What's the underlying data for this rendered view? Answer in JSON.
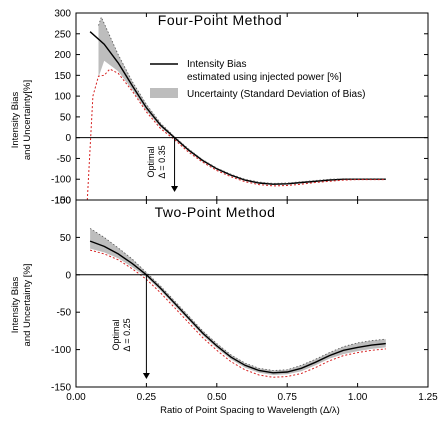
{
  "chart_data": [
    {
      "type": "line",
      "title": "Four-Point Method",
      "ylabel_line1": "Intensity Bias",
      "ylabel_line2": "and Uncertainty[%]",
      "xlim": [
        0,
        1.25
      ],
      "ylim": [
        -150,
        300
      ],
      "yticks": [
        300,
        250,
        200,
        150,
        100,
        50,
        0,
        -50,
        -100,
        -150
      ],
      "grid": false,
      "legend": {
        "placement": "top-right",
        "line_label_1": "Intensity Bias",
        "line_label_2": "estimated using injected power [%]",
        "band_label": "Uncertainty (Standard Deviation of Bias)"
      },
      "annotation": {
        "line1": "Optimal",
        "line2": "Δ = 0.35",
        "x": 0.35
      },
      "series": [
        {
          "kind": "bias",
          "x": [
            0.05,
            0.1,
            0.15,
            0.2,
            0.25,
            0.3,
            0.35,
            0.4,
            0.45,
            0.5,
            0.55,
            0.6,
            0.65,
            0.7,
            0.75,
            0.8,
            0.85,
            0.9,
            0.95,
            1.0,
            1.05,
            1.1
          ],
          "y": [
            255,
            225,
            180,
            125,
            72,
            30,
            0,
            -30,
            -55,
            -75,
            -90,
            -102,
            -109,
            -112,
            -111,
            -108,
            -105,
            -102,
            -100,
            -100,
            -100,
            -100
          ]
        },
        {
          "kind": "band",
          "x": [
            0.08,
            0.09,
            0.1,
            0.15,
            0.2,
            0.25,
            0.3,
            0.35,
            0.4,
            0.45,
            0.5,
            0.55,
            0.6,
            0.65,
            0.7,
            0.75,
            0.8,
            0.85,
            0.9,
            0.95,
            1.0,
            1.05,
            1.1
          ],
          "upper": [
            270,
            290,
            275,
            200,
            135,
            80,
            35,
            2,
            -27,
            -53,
            -73,
            -88,
            -100,
            -107,
            -110,
            -109,
            -106,
            -103,
            -100,
            -99,
            -99,
            -99,
            -99
          ],
          "lower": [
            145,
            165,
            185,
            160,
            115,
            65,
            25,
            -3,
            -33,
            -57,
            -77,
            -92,
            -104,
            -111,
            -114,
            -113,
            -110,
            -107,
            -104,
            -101,
            -101,
            -101,
            -101
          ]
        },
        {
          "kind": "lower-red",
          "x": [
            0.04,
            0.06,
            0.08,
            0.1,
            0.12,
            0.15,
            0.2,
            0.25,
            0.3,
            0.35,
            0.4,
            0.45,
            0.5,
            0.55,
            0.6,
            0.65,
            0.7,
            0.75,
            0.8,
            0.85,
            0.9,
            0.95,
            1.0,
            1.05,
            1.1
          ],
          "y": [
            -150,
            100,
            148,
            150,
            165,
            155,
            112,
            62,
            22,
            -5,
            -35,
            -59,
            -79,
            -94,
            -106,
            -113,
            -116,
            -115,
            -112,
            -108,
            -105,
            -102,
            -101,
            -101,
            -101
          ]
        }
      ]
    },
    {
      "type": "line",
      "title": "Two-Point Method",
      "ylabel_line1": "Intensity Bias",
      "ylabel_line2": "and Uncertainty [%]",
      "xlabel": "Ratio of Point Spacing to Wavelength (Δ/λ)",
      "xlim": [
        0,
        1.25
      ],
      "ylim": [
        -150,
        100
      ],
      "xticks": [
        "0.00",
        "0.25",
        "0.50",
        "0.75",
        "1.00",
        "1.25"
      ],
      "yticks": [
        100,
        50,
        0,
        -50,
        -100,
        -150
      ],
      "grid": false,
      "annotation": {
        "line1": "Optimal",
        "line2": "Δ = 0.25",
        "x": 0.25
      },
      "series": [
        {
          "kind": "bias",
          "x": [
            0.05,
            0.1,
            0.15,
            0.2,
            0.25,
            0.3,
            0.35,
            0.4,
            0.45,
            0.5,
            0.55,
            0.6,
            0.65,
            0.7,
            0.75,
            0.8,
            0.85,
            0.9,
            0.95,
            1.0,
            1.05,
            1.1
          ],
          "y": [
            45,
            38,
            28,
            15,
            0,
            -18,
            -38,
            -58,
            -78,
            -95,
            -110,
            -121,
            -128,
            -131,
            -130,
            -125,
            -117,
            -108,
            -101,
            -97,
            -94,
            -92
          ]
        },
        {
          "kind": "band",
          "x": [
            0.05,
            0.1,
            0.15,
            0.2,
            0.25,
            0.3,
            0.35,
            0.4,
            0.45,
            0.5,
            0.55,
            0.6,
            0.65,
            0.7,
            0.75,
            0.8,
            0.85,
            0.9,
            0.95,
            1.0,
            1.05,
            1.1
          ],
          "upper": [
            62,
            50,
            36,
            21,
            3,
            -15,
            -35,
            -55,
            -75,
            -92,
            -107,
            -118,
            -125,
            -128,
            -127,
            -121,
            -113,
            -104,
            -96,
            -91,
            -88,
            -86
          ],
          "lower": [
            35,
            30,
            22,
            10,
            -3,
            -21,
            -41,
            -61,
            -81,
            -98,
            -113,
            -124,
            -131,
            -134,
            -133,
            -129,
            -121,
            -112,
            -106,
            -102,
            -99,
            -97
          ]
        },
        {
          "kind": "lower-red",
          "x": [
            0.05,
            0.1,
            0.15,
            0.2,
            0.25,
            0.3,
            0.35,
            0.4,
            0.45,
            0.5,
            0.55,
            0.6,
            0.65,
            0.7,
            0.75,
            0.8,
            0.85,
            0.9,
            0.95,
            1.0,
            1.05,
            1.1
          ],
          "y": [
            33,
            28,
            20,
            8,
            -6,
            -24,
            -44,
            -64,
            -84,
            -101,
            -116,
            -127,
            -134,
            -137,
            -136,
            -132,
            -124,
            -115,
            -108,
            -104,
            -101,
            -99
          ]
        }
      ]
    }
  ]
}
